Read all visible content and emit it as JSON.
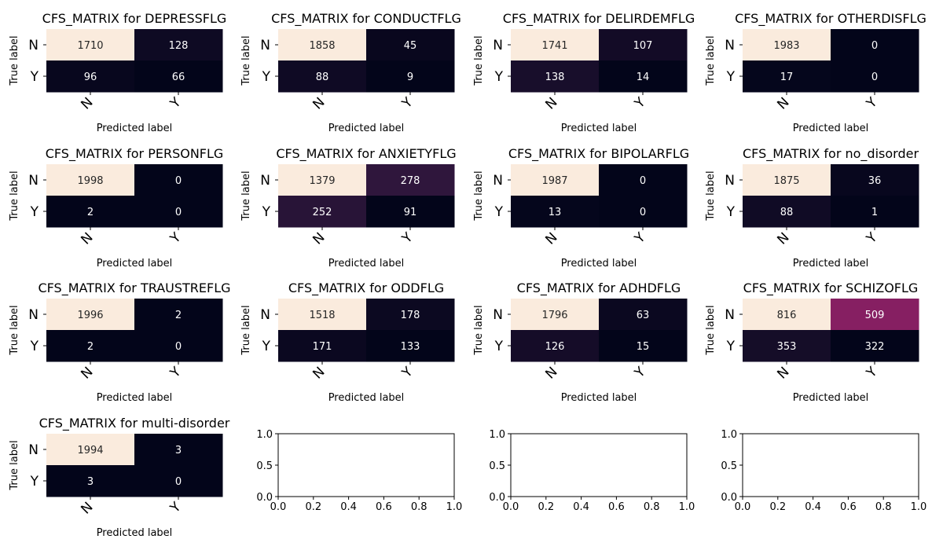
{
  "colormap": "rocket",
  "chart_data": [
    {
      "type": "heatmap",
      "title": "CFS_MATRIX for DEPRESSFLG",
      "xlabel": "Predicted label",
      "ylabel": "True label",
      "x_categories": [
        "N",
        "Y"
      ],
      "y_categories": [
        "N",
        "Y"
      ],
      "values": [
        [
          1710,
          128
        ],
        [
          96,
          66
        ]
      ]
    },
    {
      "type": "heatmap",
      "title": "CFS_MATRIX for CONDUCTFLG",
      "xlabel": "Predicted label",
      "ylabel": "True label",
      "x_categories": [
        "N",
        "Y"
      ],
      "y_categories": [
        "N",
        "Y"
      ],
      "values": [
        [
          1858,
          45
        ],
        [
          88,
          9
        ]
      ]
    },
    {
      "type": "heatmap",
      "title": "CFS_MATRIX for DELIRDEMFLG",
      "xlabel": "Predicted label",
      "ylabel": "True label",
      "x_categories": [
        "N",
        "Y"
      ],
      "y_categories": [
        "N",
        "Y"
      ],
      "values": [
        [
          1741,
          107
        ],
        [
          138,
          14
        ]
      ]
    },
    {
      "type": "heatmap",
      "title": "CFS_MATRIX for OTHERDISFLG",
      "xlabel": "Predicted label",
      "ylabel": "True label",
      "x_categories": [
        "N",
        "Y"
      ],
      "y_categories": [
        "N",
        "Y"
      ],
      "values": [
        [
          1983,
          0
        ],
        [
          17,
          0
        ]
      ]
    },
    {
      "type": "heatmap",
      "title": "CFS_MATRIX for PERSONFLG",
      "xlabel": "Predicted label",
      "ylabel": "True label",
      "x_categories": [
        "N",
        "Y"
      ],
      "y_categories": [
        "N",
        "Y"
      ],
      "values": [
        [
          1998,
          0
        ],
        [
          2,
          0
        ]
      ]
    },
    {
      "type": "heatmap",
      "title": "CFS_MATRIX for ANXIETYFLG",
      "xlabel": "Predicted label",
      "ylabel": "True label",
      "x_categories": [
        "N",
        "Y"
      ],
      "y_categories": [
        "N",
        "Y"
      ],
      "values": [
        [
          1379,
          278
        ],
        [
          252,
          91
        ]
      ]
    },
    {
      "type": "heatmap",
      "title": "CFS_MATRIX for BIPOLARFLG",
      "xlabel": "Predicted label",
      "ylabel": "True label",
      "x_categories": [
        "N",
        "Y"
      ],
      "y_categories": [
        "N",
        "Y"
      ],
      "values": [
        [
          1987,
          0
        ],
        [
          13,
          0
        ]
      ]
    },
    {
      "type": "heatmap",
      "title": "CFS_MATRIX for no_disorder",
      "xlabel": "Predicted label",
      "ylabel": "True label",
      "x_categories": [
        "N",
        "Y"
      ],
      "y_categories": [
        "N",
        "Y"
      ],
      "values": [
        [
          1875,
          36
        ],
        [
          88,
          1
        ]
      ]
    },
    {
      "type": "heatmap",
      "title": "CFS_MATRIX for TRAUSTREFLG",
      "xlabel": "Predicted label",
      "ylabel": "True label",
      "x_categories": [
        "N",
        "Y"
      ],
      "y_categories": [
        "N",
        "Y"
      ],
      "values": [
        [
          1996,
          2
        ],
        [
          2,
          0
        ]
      ]
    },
    {
      "type": "heatmap",
      "title": "CFS_MATRIX for ODDFLG",
      "xlabel": "Predicted label",
      "ylabel": "True label",
      "x_categories": [
        "N",
        "Y"
      ],
      "y_categories": [
        "N",
        "Y"
      ],
      "values": [
        [
          1518,
          178
        ],
        [
          171,
          133
        ]
      ]
    },
    {
      "type": "heatmap",
      "title": "CFS_MATRIX for ADHDFLG",
      "xlabel": "Predicted label",
      "ylabel": "True label",
      "x_categories": [
        "N",
        "Y"
      ],
      "y_categories": [
        "N",
        "Y"
      ],
      "values": [
        [
          1796,
          63
        ],
        [
          126,
          15
        ]
      ]
    },
    {
      "type": "heatmap",
      "title": "CFS_MATRIX for SCHIZOFLG",
      "xlabel": "Predicted label",
      "ylabel": "True label",
      "x_categories": [
        "N",
        "Y"
      ],
      "y_categories": [
        "N",
        "Y"
      ],
      "values": [
        [
          816,
          509
        ],
        [
          353,
          322
        ]
      ]
    },
    {
      "type": "heatmap",
      "title": "CFS_MATRIX for multi-disorder",
      "xlabel": "Predicted label",
      "ylabel": "True label",
      "x_categories": [
        "N",
        "Y"
      ],
      "y_categories": [
        "N",
        "Y"
      ],
      "values": [
        [
          1994,
          3
        ],
        [
          3,
          0
        ]
      ]
    },
    {
      "type": "empty",
      "xlim": [
        0,
        1
      ],
      "ylim": [
        0,
        1
      ],
      "xticks": [
        "0.0",
        "0.2",
        "0.4",
        "0.6",
        "0.8",
        "1.0"
      ],
      "yticks": [
        "0.0",
        "0.5",
        "1.0"
      ]
    },
    {
      "type": "empty",
      "xlim": [
        0,
        1
      ],
      "ylim": [
        0,
        1
      ],
      "xticks": [
        "0.0",
        "0.2",
        "0.4",
        "0.6",
        "0.8",
        "1.0"
      ],
      "yticks": [
        "0.0",
        "0.5",
        "1.0"
      ]
    },
    {
      "type": "empty",
      "xlim": [
        0,
        1
      ],
      "ylim": [
        0,
        1
      ],
      "xticks": [
        "0.0",
        "0.2",
        "0.4",
        "0.6",
        "0.8",
        "1.0"
      ],
      "yticks": [
        "0.0",
        "0.5",
        "1.0"
      ]
    }
  ]
}
